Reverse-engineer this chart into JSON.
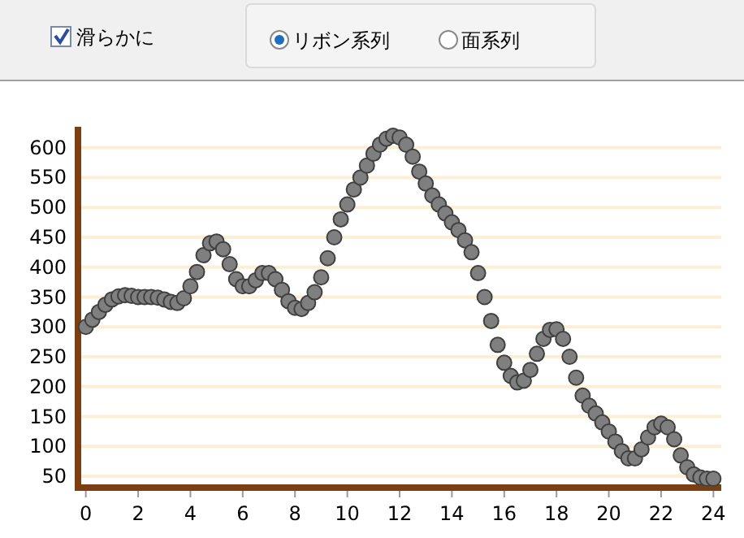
{
  "chart_data": [
    {
      "type": "other",
      "annotations": [
        "滑らかに",
        "リボン系列",
        "面系列"
      ]
    },
    {
      "type": "scatter",
      "marker": "circle",
      "grid": "y",
      "xlim": [
        -0.3,
        24.3
      ],
      "ylim": [
        31,
        635
      ],
      "xticks": [
        0,
        2,
        4,
        6,
        8,
        10,
        12,
        14,
        16,
        18,
        20,
        22,
        24
      ],
      "yticks": [
        50,
        100,
        150,
        200,
        250,
        300,
        350,
        400,
        450,
        500,
        550,
        600
      ],
      "series": [
        {
          "color": "#7f7f7f",
          "x": [
            0,
            0.25,
            0.5,
            0.75,
            1,
            1.25,
            1.5,
            1.75,
            2,
            2.25,
            2.5,
            2.75,
            3,
            3.25,
            3.5,
            3.75,
            4,
            4.25,
            4.5,
            4.75,
            5,
            5.25,
            5.5,
            5.75,
            6,
            6.25,
            6.5,
            6.75,
            7,
            7.25,
            7.5,
            7.75,
            8,
            8.25,
            8.5,
            8.75,
            9,
            9.25,
            9.5,
            9.75,
            10,
            10.25,
            10.5,
            10.75,
            11,
            11.25,
            11.5,
            11.75,
            12,
            12.25,
            12.5,
            12.75,
            13,
            13.25,
            13.5,
            13.75,
            14,
            14.25,
            14.5,
            14.75,
            15,
            15.25,
            15.5,
            15.75,
            16,
            16.25,
            16.5,
            16.75,
            17,
            17.25,
            17.5,
            17.75,
            18,
            18.25,
            18.5,
            18.75,
            19,
            19.25,
            19.5,
            19.75,
            20,
            20.25,
            20.5,
            20.75,
            21,
            21.25,
            21.5,
            21.75,
            22,
            22.25,
            22.5,
            22.75,
            23,
            23.25,
            23.5,
            23.75,
            24
          ],
          "values": [
            300,
            312,
            325,
            337,
            346,
            351,
            353,
            352,
            350,
            350,
            350,
            349,
            346,
            342,
            340,
            348,
            368,
            392,
            420,
            440,
            443,
            430,
            405,
            380,
            368,
            368,
            378,
            390,
            390,
            380,
            362,
            343,
            332,
            330,
            340,
            358,
            383,
            415,
            450,
            480,
            505,
            530,
            550,
            570,
            590,
            605,
            615,
            620,
            617,
            605,
            585,
            560,
            540,
            520,
            505,
            490,
            475,
            462,
            445,
            425,
            390,
            350,
            310,
            270,
            240,
            218,
            207,
            210,
            228,
            255,
            280,
            295,
            296,
            280,
            250,
            215,
            185,
            168,
            155,
            140,
            125,
            108,
            92,
            80,
            80,
            95,
            115,
            132,
            138,
            132,
            112,
            85,
            65,
            53,
            48,
            46,
            46
          ]
        }
      ]
    }
  ]
}
